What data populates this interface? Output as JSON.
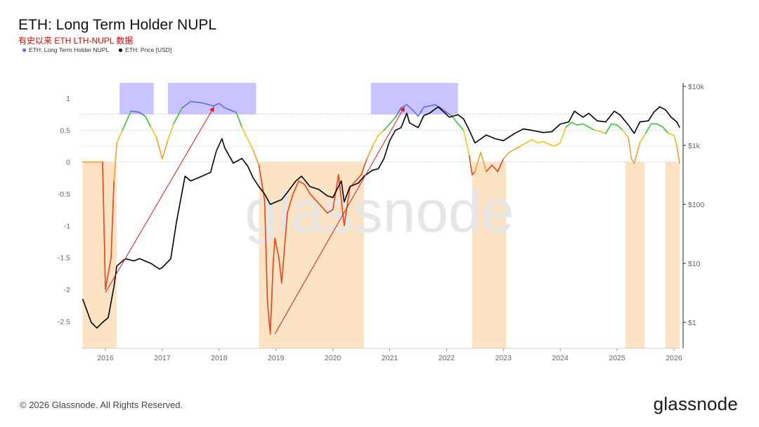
{
  "title": "ETH: Long Term Holder NUPL",
  "subtitle": "有史以来 ETH LTH-NUPL 数据",
  "legend": [
    {
      "label": "ETH: Long Term Holder NUPL",
      "color": "#5b6ee1"
    },
    {
      "label": "ETH: Price [USD]",
      "color": "#000000"
    }
  ],
  "footer": "© 2026 Glassnode. All Rights Reserved.",
  "brand": "glassnode",
  "watermark": "glassnode",
  "colors": {
    "euphoria": "#5b6ee1",
    "belief": "#37c53a",
    "optimism": "#f0c419",
    "hope": "#f0a030",
    "capitulation": "#e8431c",
    "price": "#000000",
    "euphoria_zone": "#c9c3ff",
    "capitulation_zone": "#fbe3c4"
  },
  "chart_data": {
    "type": "line",
    "title": "ETH: Long Term Holder NUPL",
    "x_ticks": [
      "2016",
      "2017",
      "2018",
      "2019",
      "2020",
      "2021",
      "2022",
      "2023",
      "2024",
      "2025",
      "2026"
    ],
    "y_left_ticks": [
      "1",
      "0.5",
      "0",
      "-0.5",
      "-1",
      "-1.5",
      "-2",
      "-2.5"
    ],
    "y_left_range": [
      -3.0,
      1.25
    ],
    "y_right_ticks": [
      "$10k",
      "$1k",
      "$100",
      "$10",
      "$1"
    ],
    "y_right_scale": "log",
    "y_right_range": [
      0.4,
      10000
    ],
    "grid_levels": [
      0.75,
      0.5,
      0.25,
      0
    ],
    "series": [
      {
        "name": "ETH: Long Term Holder NUPL",
        "x": [
          2015.6,
          2015.9,
          2015.95,
          2016.0,
          2016.1,
          2016.15,
          2016.2,
          2016.3,
          2016.45,
          2016.6,
          2016.7,
          2016.8,
          2016.9,
          2017.0,
          2017.1,
          2017.2,
          2017.35,
          2017.5,
          2017.7,
          2017.9,
          2018.0,
          2018.1,
          2018.3,
          2018.4,
          2018.6,
          2018.7,
          2018.8,
          2018.85,
          2018.9,
          2018.95,
          2018.98,
          2019.05,
          2019.1,
          2019.2,
          2019.3,
          2019.4,
          2019.5,
          2019.6,
          2019.7,
          2019.8,
          2019.9,
          2020.0,
          2020.1,
          2020.2,
          2020.3,
          2020.4,
          2020.5,
          2020.6,
          2020.7,
          2020.8,
          2020.9,
          2021.0,
          2021.1,
          2021.2,
          2021.3,
          2021.4,
          2021.5,
          2021.6,
          2021.7,
          2021.8,
          2021.9,
          2022.0,
          2022.1,
          2022.2,
          2022.3,
          2022.4,
          2022.45,
          2022.5,
          2022.6,
          2022.7,
          2022.8,
          2022.9,
          2023.0,
          2023.1,
          2023.2,
          2023.3,
          2023.4,
          2023.5,
          2023.6,
          2023.7,
          2023.8,
          2023.9,
          2024.0,
          2024.1,
          2024.2,
          2024.3,
          2024.4,
          2024.5,
          2024.6,
          2024.7,
          2024.8,
          2024.9,
          2025.0,
          2025.1,
          2025.2,
          2025.25,
          2025.3,
          2025.4,
          2025.5,
          2025.6,
          2025.7,
          2025.8,
          2025.9,
          2026.0,
          2026.05,
          2026.1
        ],
        "values": [
          0,
          0,
          0,
          -2.0,
          -1.5,
          -0.3,
          0.3,
          0.5,
          0.8,
          0.78,
          0.72,
          0.55,
          0.38,
          0.05,
          0.35,
          0.6,
          0.85,
          0.95,
          0.93,
          0.88,
          0.92,
          0.85,
          0.78,
          0.55,
          0.18,
          -0.05,
          -0.6,
          -2.2,
          -2.7,
          -1.6,
          -1.2,
          -1.5,
          -1.9,
          -0.8,
          -0.5,
          -0.3,
          -0.35,
          -0.5,
          -0.6,
          -0.7,
          -0.8,
          -0.75,
          -0.2,
          -1.0,
          -0.4,
          -0.3,
          -0.2,
          0.05,
          0.25,
          0.42,
          0.5,
          0.6,
          0.7,
          0.85,
          0.9,
          0.82,
          0.72,
          0.86,
          0.88,
          0.9,
          0.85,
          0.78,
          0.72,
          0.6,
          0.5,
          0.1,
          -0.2,
          -0.15,
          0.15,
          -0.15,
          -0.05,
          -0.15,
          0.05,
          0.15,
          0.2,
          0.25,
          0.3,
          0.35,
          0.3,
          0.32,
          0.28,
          0.25,
          0.3,
          0.55,
          0.62,
          0.58,
          0.6,
          0.55,
          0.5,
          0.48,
          0.45,
          0.6,
          0.58,
          0.5,
          0.38,
          0.05,
          -0.02,
          0.3,
          0.45,
          0.6,
          0.6,
          0.55,
          0.45,
          0.42,
          0.25,
          -0.02
        ]
      },
      {
        "name": "ETH: Price [USD]",
        "x": [
          2015.6,
          2015.75,
          2015.85,
          2015.95,
          2016.05,
          2016.15,
          2016.2,
          2016.35,
          2016.5,
          2016.6,
          2016.8,
          2016.95,
          2017.0,
          2017.15,
          2017.25,
          2017.4,
          2017.5,
          2017.7,
          2017.85,
          2017.95,
          2018.05,
          2018.1,
          2018.25,
          2018.4,
          2018.5,
          2018.6,
          2018.7,
          2018.8,
          2018.9,
          2019.0,
          2019.1,
          2019.2,
          2019.35,
          2019.45,
          2019.6,
          2019.75,
          2019.9,
          2020.0,
          2020.15,
          2020.2,
          2020.3,
          2020.45,
          2020.55,
          2020.7,
          2020.8,
          2020.9,
          2021.0,
          2021.1,
          2021.2,
          2021.3,
          2021.35,
          2021.5,
          2021.6,
          2021.7,
          2021.85,
          2021.95,
          2022.05,
          2022.2,
          2022.3,
          2022.4,
          2022.5,
          2022.7,
          2022.85,
          2023.0,
          2023.2,
          2023.35,
          2023.5,
          2023.7,
          2023.85,
          2024.0,
          2024.15,
          2024.25,
          2024.4,
          2024.5,
          2024.65,
          2024.8,
          2024.95,
          2025.05,
          2025.2,
          2025.3,
          2025.4,
          2025.55,
          2025.65,
          2025.75,
          2025.85,
          2025.95,
          2026.05,
          2026.1
        ],
        "values": [
          2.5,
          1.0,
          0.8,
          1.0,
          1.2,
          4.0,
          9.0,
          12.0,
          11.0,
          12.0,
          10.0,
          8.0,
          8.5,
          12.0,
          50.0,
          300.0,
          250.0,
          300.0,
          350.0,
          800.0,
          1300.0,
          900.0,
          500.0,
          600.0,
          450.0,
          280.0,
          200.0,
          150.0,
          100.0,
          110.0,
          120.0,
          160.0,
          250.0,
          300.0,
          200.0,
          180.0,
          140.0,
          130.0,
          250.0,
          110.0,
          200.0,
          230.0,
          300.0,
          380.0,
          400.0,
          600.0,
          1200.0,
          1800.0,
          2000.0,
          3500.0,
          2400.0,
          2000.0,
          3200.0,
          3500.0,
          4500.0,
          3700.0,
          3000.0,
          3300.0,
          2800.0,
          1800.0,
          1100.0,
          1500.0,
          1300.0,
          1200.0,
          1600.0,
          1900.0,
          1800.0,
          1650.0,
          1700.0,
          2300.0,
          2500.0,
          3800.0,
          3000.0,
          3500.0,
          2600.0,
          2500.0,
          3800.0,
          3300.0,
          2200.0,
          1600.0,
          2500.0,
          2600.0,
          3700.0,
          4500.0,
          4000.0,
          3000.0,
          2500.0,
          2000.0
        ]
      }
    ],
    "euphoria_zones": [
      [
        2016.25,
        2016.85
      ],
      [
        2017.1,
        2018.65
      ],
      [
        2020.67,
        2022.2
      ]
    ],
    "capitulation_zones": [
      [
        2015.6,
        2016.2
      ],
      [
        2018.7,
        2020.55
      ],
      [
        2022.45,
        2023.05
      ],
      [
        2025.15,
        2025.48
      ],
      [
        2025.85,
        2026.1
      ]
    ]
  }
}
